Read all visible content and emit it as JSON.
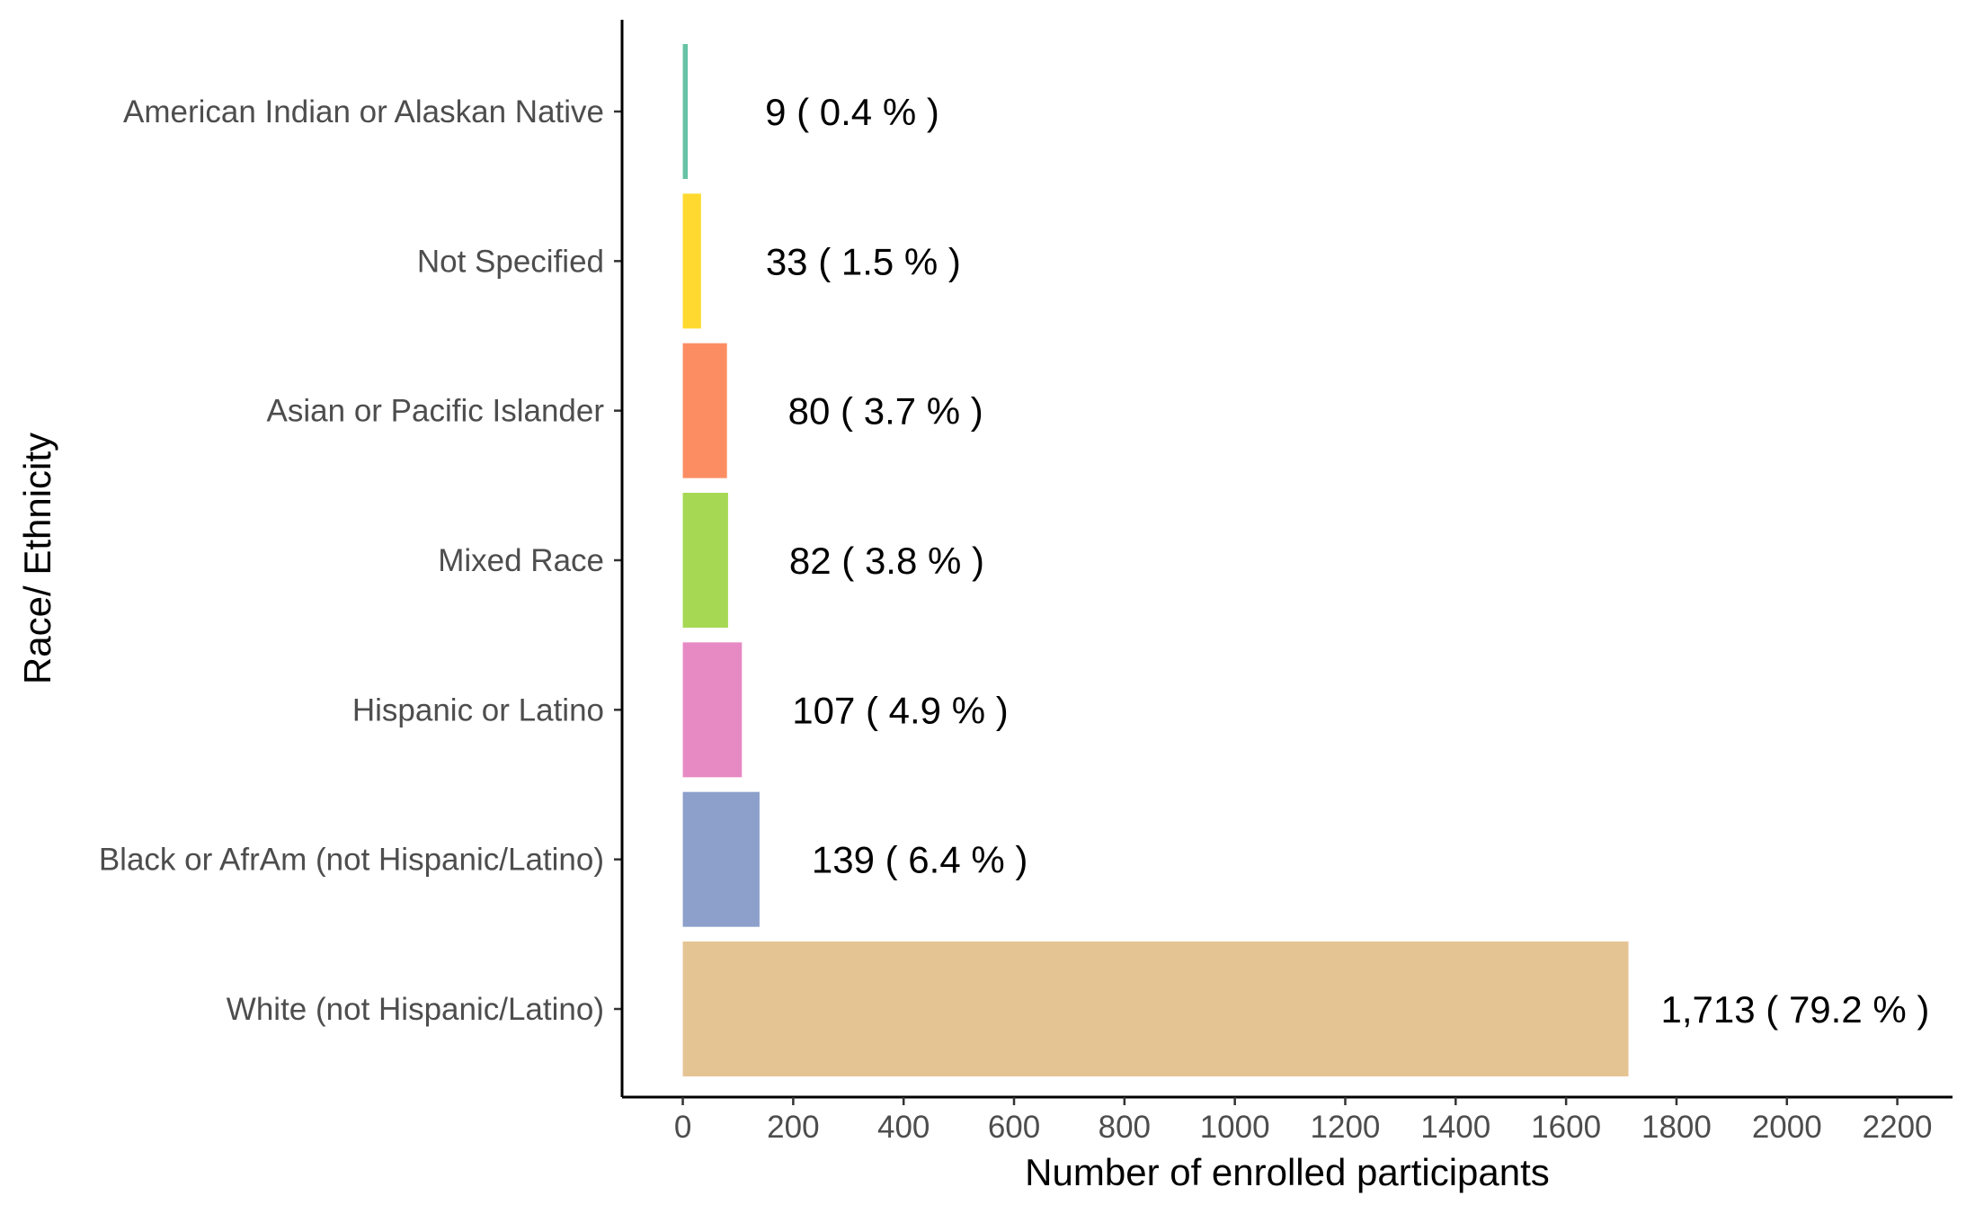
{
  "chart_data": {
    "type": "bar",
    "orientation": "horizontal",
    "xlabel": "Number of enrolled participants",
    "ylabel": "Race/ Ethnicity",
    "xlim": [
      -110,
      2300
    ],
    "xticks": [
      0,
      200,
      400,
      600,
      800,
      1000,
      1200,
      1400,
      1600,
      1800,
      2000,
      2200
    ],
    "grid": false,
    "legend": "none",
    "categories": [
      "American Indian or Alaskan Native",
      "Not Specified",
      "Asian or Pacific Islander",
      "Mixed Race",
      "Hispanic or Latino",
      "Black or AfrAm (not Hispanic/Latino)",
      "White (not Hispanic/Latino)"
    ],
    "values": [
      9,
      33,
      80,
      82,
      107,
      139,
      1713
    ],
    "data_labels": [
      "9 ( 0.4 % )",
      "33 ( 1.5 % )",
      "80 ( 3.7 % )",
      "82 ( 3.8 % )",
      "107 ( 4.9 % )",
      "139 ( 6.4 % )",
      "1,713 ( 79.2 % )"
    ],
    "colors": [
      "#66c2a5",
      "#ffd92f",
      "#fc8d62",
      "#a6d854",
      "#e78ac3",
      "#8da0cb",
      "#e5c494"
    ]
  }
}
